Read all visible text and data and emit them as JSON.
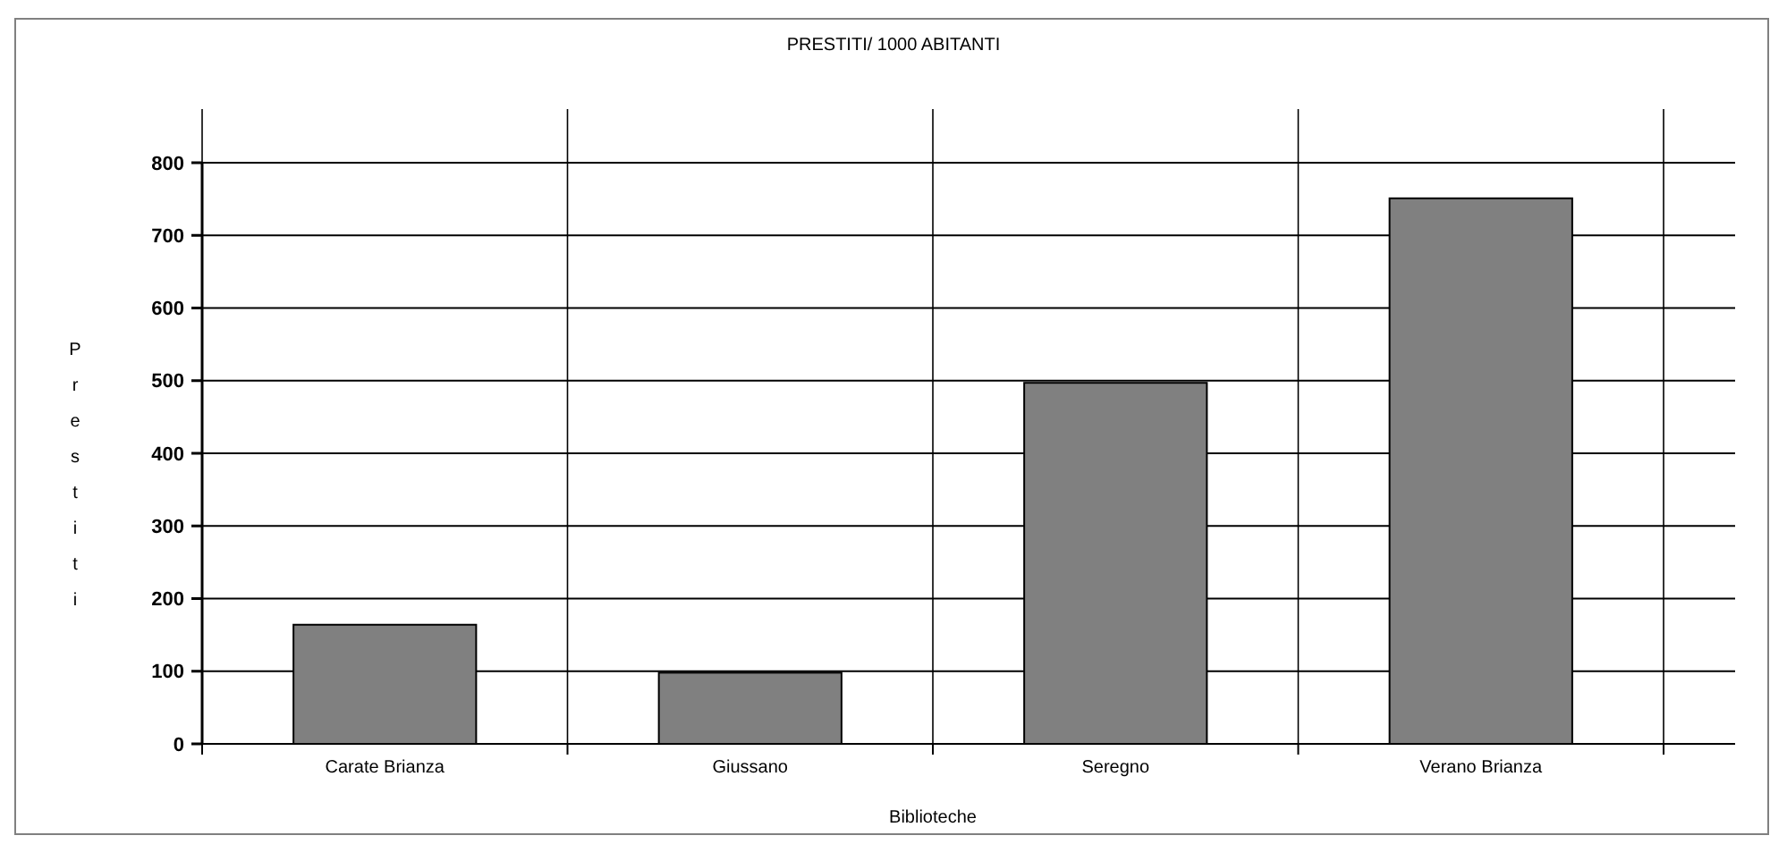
{
  "chart_data": {
    "type": "bar",
    "title": "PRESTITI/ 1000 ABITANTI",
    "xlabel": "Biblioteche",
    "ylabel": "Prestiti",
    "categories": [
      "Carate Brianza",
      "Giussano",
      "Seregno",
      "Verano Brianza"
    ],
    "values": [
      164,
      98,
      497,
      751
    ],
    "color": "#808080",
    "ylim": [
      0,
      800
    ],
    "yticks": [
      0,
      100,
      200,
      300,
      400,
      500,
      600,
      700,
      800
    ],
    "grid": true
  }
}
